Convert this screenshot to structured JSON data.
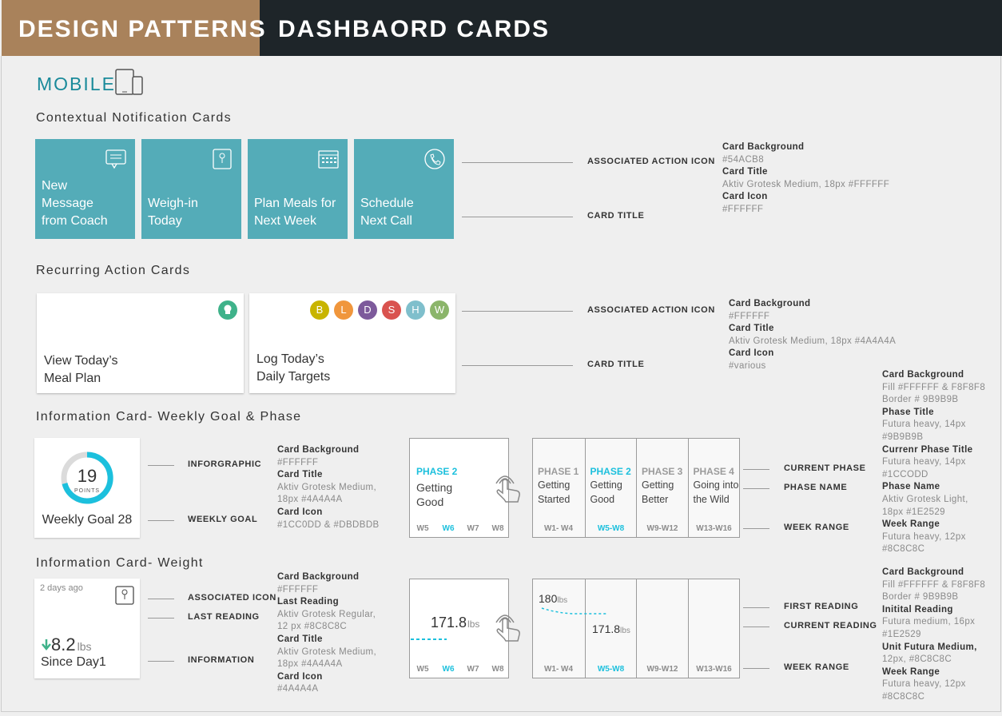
{
  "header": {
    "left": "DESIGN PATTERNS",
    "right": "DASHBAORD CARDS"
  },
  "platform": "MOBILE",
  "notification": {
    "title": "Contextual Notification Cards",
    "cards": [
      [
        "New",
        "Message",
        "from Coach"
      ],
      [
        "Weigh-in",
        "Today"
      ],
      [
        "Plan Meals for",
        "Next Week"
      ],
      [
        "Schedule",
        "Next Call"
      ]
    ],
    "callouts": [
      "ASSOCIATED ACTION ICON",
      "CARD TITLE"
    ],
    "specs": [
      {
        "label": "Card Background",
        "value": [
          "#54ACB8"
        ]
      },
      {
        "label": "Card Title",
        "value": [
          "Aktiv Grotesk Medium, 18px #FFFFFF"
        ]
      },
      {
        "label": "Card Icon",
        "value": [
          "#FFFFFF"
        ]
      }
    ]
  },
  "recurring": {
    "title": "Recurring Action Cards",
    "cards": [
      [
        "View Today’s",
        "Meal Plan"
      ],
      [
        "Log Today’s",
        "Daily Targets"
      ]
    ],
    "meal_letters": [
      "B",
      "L",
      "D",
      "S",
      "H",
      "W"
    ],
    "callouts": [
      "ASSOCIATED ACTION ICON",
      "CARD TITLE"
    ],
    "specs": [
      {
        "label": "Card Background",
        "value": [
          "#FFFFFF"
        ]
      },
      {
        "label": "Card Title",
        "value": [
          "Aktiv Grotesk Medium, 18px #4A4A4A"
        ]
      },
      {
        "label": "Card Icon",
        "value": [
          "#various"
        ]
      }
    ]
  },
  "weekly": {
    "title": "Information Card- Weekly Goal & Phase",
    "goal": {
      "points": "19",
      "unit": "POINTS",
      "label": "Weekly Goal 28"
    },
    "callouts": [
      "INFORGRAPHIC",
      "WEEKLY GOAL"
    ],
    "specs": [
      {
        "label": "Card Background",
        "value": [
          "#FFFFFF"
        ]
      },
      {
        "label": "Card Title",
        "value": [
          "Aktiv Grotesk Medium,",
          "18px #4A4A4A"
        ]
      },
      {
        "label": "Card Icon",
        "value": [
          "#1CC0DD & #DBDBDB"
        ]
      }
    ],
    "phase_card": {
      "phase": "PHASE 2",
      "name": [
        "Getting",
        "Good"
      ],
      "weeks": [
        "W5",
        "W6",
        "W7",
        "W8"
      ]
    },
    "phases": [
      {
        "phase": "PHASE 1",
        "name": [
          "Getting",
          "Started"
        ],
        "range": "W1- W4"
      },
      {
        "phase": "PHASE 2",
        "name": [
          "Getting",
          "Good"
        ],
        "range": "W5-W8"
      },
      {
        "phase": "PHASE 3",
        "name": [
          "Getting",
          "Better"
        ],
        "range": "W9-W12"
      },
      {
        "phase": "PHASE 4",
        "name": [
          "Going into",
          "the Wild"
        ],
        "range": "W13-W16"
      }
    ],
    "phase_callouts": [
      "CURRENT PHASE",
      "PHASE NAME",
      "WEEK RANGE"
    ],
    "phase_specs": [
      {
        "label": "Card Background",
        "value": [
          "Fill #FFFFFF & F8F8F8",
          "Border # 9B9B9B"
        ]
      },
      {
        "label": "Phase Title",
        "value": [
          "Futura heavy, 14px",
          " #9B9B9B"
        ]
      },
      {
        "label": "Currenr Phase Title",
        "value": [
          "Futura heavy, 14px",
          " #1CCODD"
        ]
      },
      {
        "label": "Phase Name",
        "value": [
          "Aktiv Grotesk Light,",
          "18px #1E2529"
        ]
      },
      {
        "label": "Week Range",
        "value": [
          "Futura heavy, 12px",
          " #8C8C8C"
        ]
      }
    ]
  },
  "weight": {
    "title": "Information Card- Weight",
    "card": {
      "when": "2 days ago",
      "amount": "8.2",
      "unit": "lbs",
      "label": "Since Day1"
    },
    "callouts": [
      "ASSOCIATED ICON",
      "LAST READING",
      "INFORMATION"
    ],
    "specs": [
      {
        "label": "Card Background",
        "value": [
          "#FFFFFF"
        ]
      },
      {
        "label": "Last Reading",
        "value": [
          "Aktiv Grotesk Regular,",
          " 12 px #8C8C8C"
        ]
      },
      {
        "label": "Card Title",
        "value": [
          "Aktiv Grotesk Medium,",
          "18px #4A4A4A"
        ]
      },
      {
        "label": "Card Icon",
        "value": [
          "#4A4A4A"
        ]
      }
    ],
    "small_card": {
      "reading": "171.8",
      "unit": "lbs",
      "weeks": [
        "W5",
        "W6",
        "W7",
        "W8"
      ]
    },
    "expanded": {
      "first": "180",
      "current": "171.8",
      "unit": "lbs",
      "ranges": [
        "W1- W4",
        "W5-W8",
        "W9-W12",
        "W13-W16"
      ]
    },
    "expanded_callouts": [
      "FIRST READING",
      "CURRENT READING",
      "WEEK RANGE"
    ],
    "expanded_specs": [
      {
        "label": "Card Background",
        "value": [
          "Fill #FFFFFF & F8F8F8",
          "Border # 9B9B9B"
        ]
      },
      {
        "label": "Initital Reading",
        "value": [
          "Futura medium, 16px",
          " #1E2529"
        ]
      },
      {
        "label": "Unit Futura Medium,",
        "value": [
          "12px, #8C8C8C"
        ]
      },
      {
        "label": "Week Range",
        "value": [
          "Futura heavy, 12px",
          " #8C8C8C"
        ]
      }
    ]
  }
}
